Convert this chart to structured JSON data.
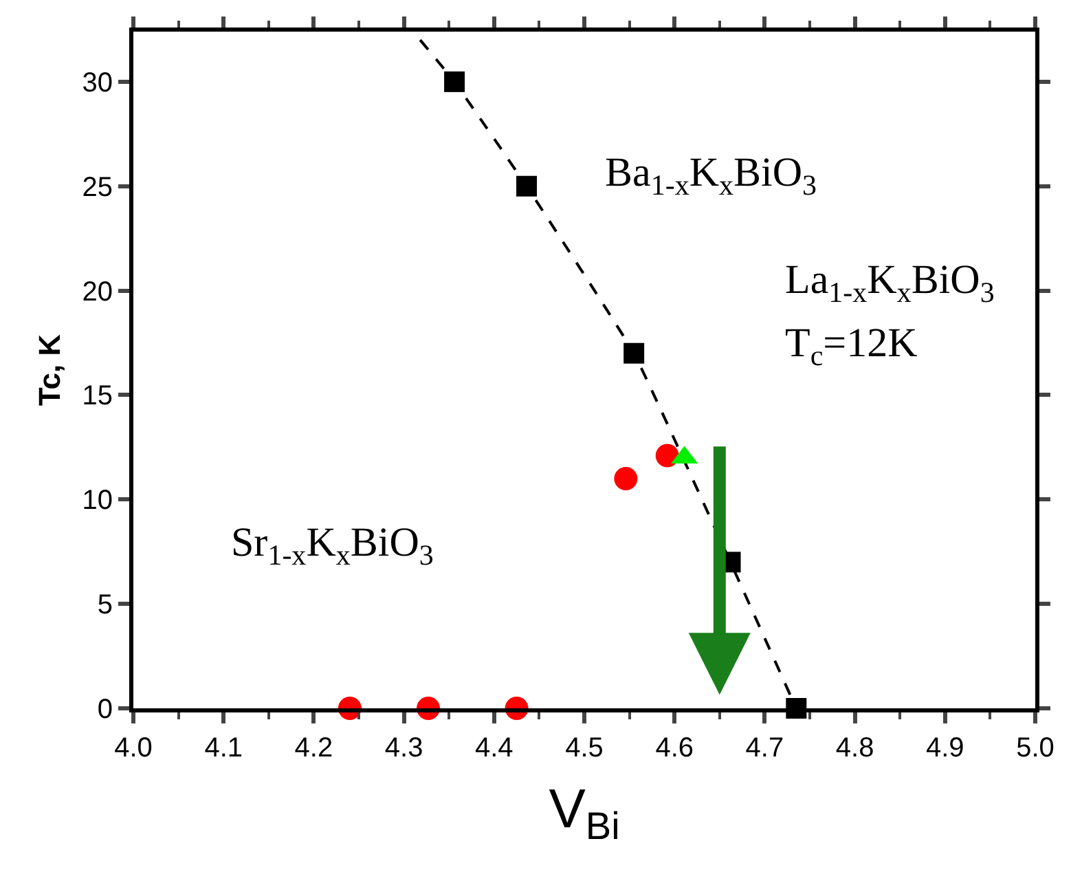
{
  "chart_data": {
    "type": "scatter",
    "xlabel": "V$_{Bi}$",
    "ylabel": "Tc, K",
    "xlim": [
      4.0,
      5.0
    ],
    "xticks": [
      {
        "value": 4.0,
        "label": "4.0"
      },
      4.1,
      4.2,
      4.3,
      4.4,
      4.5,
      4.6,
      4.7,
      4.8,
      4.9,
      {
        "value": 5.0,
        "label": "5.0"
      }
    ],
    "ylim": [
      0,
      32.4
    ],
    "yticks": [
      0,
      5,
      10,
      15,
      20,
      25,
      30
    ],
    "series": [
      {
        "type": "line",
        "color": "#000000",
        "line_style": "dashed",
        "marker": "none",
        "x": [
          4.318,
          4.356,
          4.436,
          4.555,
          4.662,
          4.735
        ],
        "values": [
          32,
          30,
          25,
          17,
          7,
          0
        ]
      },
      {
        "color": "#000000",
        "marker": "square",
        "x": [
          4.356,
          4.436,
          4.555,
          4.662,
          4.735
        ],
        "values": [
          30,
          25,
          17,
          7,
          0
        ]
      },
      {
        "color": "#ff0000",
        "marker": "circle",
        "x": [
          4.24,
          4.327,
          4.425,
          4.546,
          4.592
        ],
        "values": [
          0,
          0,
          0,
          11.0,
          12.1
        ]
      },
      {
        "color": "#00ee00",
        "marker": "triangle",
        "x": [
          4.611
        ],
        "values": [
          12.0
        ]
      }
    ],
    "annotations": [
      "Ba$_{1-x}$K$_{x}$BiO$_{3}$",
      "La$_{1-x}$K$_{x}$BiO$_{3}$",
      "T$_{c}$=12K",
      "Sr$_{1-x}$K$_{x}$BiO$_{3}$"
    ]
  }
}
